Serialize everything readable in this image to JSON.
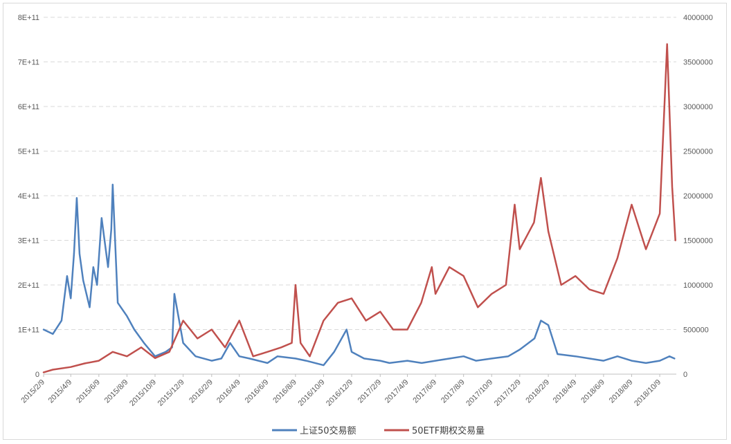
{
  "chart_data": {
    "type": "line",
    "title": "",
    "xlabel": "",
    "ylabel": "",
    "grid": true,
    "legend_position": "bottom",
    "x_tick_labels": [
      "2015/2/9",
      "2015/4/9",
      "2015/6/9",
      "2015/8/9",
      "2015/10/9",
      "2015/12/9",
      "2016/2/9",
      "2016/4/9",
      "2016/6/9",
      "2016/8/9",
      "2016/10/9",
      "2016/12/9",
      "2017/2/9",
      "2017/4/9",
      "2017/6/9",
      "2017/8/9",
      "2017/10/9",
      "2017/12/9",
      "2018/2/9",
      "2018/4/9",
      "2018/6/9",
      "2018/8/9",
      "2018/10/9"
    ],
    "y_left": {
      "range": [
        0,
        800000000000
      ],
      "tick_values": [
        0,
        100000000000,
        200000000000,
        300000000000,
        400000000000,
        500000000000,
        600000000000,
        700000000000,
        800000000000
      ],
      "tick_labels": [
        "0",
        "1E+11",
        "2E+11",
        "3E+11",
        "4E+11",
        "5E+11",
        "6E+11",
        "7E+11",
        "8E+11"
      ]
    },
    "y_right": {
      "range": [
        0,
        4000000
      ],
      "tick_values": [
        0,
        500000,
        1000000,
        1500000,
        2000000,
        2500000,
        3000000,
        3500000,
        4000000
      ],
      "tick_labels": [
        "0",
        "500000",
        "1000000",
        "1500000",
        "2000000",
        "2500000",
        "3000000",
        "3500000",
        "4000000"
      ]
    },
    "series": [
      {
        "name": "上证50交易额",
        "axis": "left",
        "color": "#4f81bd",
        "x": [
          "2015/2/9",
          "2015/3/1",
          "2015/3/20",
          "2015/4/1",
          "2015/4/9",
          "2015/4/16",
          "2015/4/22",
          "2015/4/28",
          "2015/5/6",
          "2015/5/20",
          "2015/5/28",
          "2015/6/5",
          "2015/6/15",
          "2015/6/29",
          "2015/7/6",
          "2015/7/9",
          "2015/7/20",
          "2015/8/9",
          "2015/8/25",
          "2015/9/15",
          "2015/10/9",
          "2015/11/1",
          "2015/11/15",
          "2015/11/20",
          "2015/12/9",
          "2016/1/5",
          "2016/2/9",
          "2016/3/1",
          "2016/3/20",
          "2016/4/9",
          "2016/5/1",
          "2016/6/9",
          "2016/7/1",
          "2016/8/9",
          "2016/9/1",
          "2016/10/9",
          "2016/11/1",
          "2016/11/28",
          "2016/12/9",
          "2017/1/5",
          "2017/2/9",
          "2017/3/1",
          "2017/4/9",
          "2017/5/10",
          "2017/6/9",
          "2017/7/10",
          "2017/8/9",
          "2017/9/5",
          "2017/10/9",
          "2017/11/14",
          "2017/12/9",
          "2018/1/10",
          "2018/1/24",
          "2018/2/9",
          "2018/3/1",
          "2018/4/9",
          "2018/5/9",
          "2018/6/9",
          "2018/7/9",
          "2018/8/9",
          "2018/9/9",
          "2018/10/9",
          "2018/10/30",
          "2018/11/10"
        ],
        "values": [
          100000000000,
          90000000000,
          120000000000,
          220000000000,
          170000000000,
          270000000000,
          395000000000,
          270000000000,
          210000000000,
          150000000000,
          240000000000,
          200000000000,
          350000000000,
          240000000000,
          325000000000,
          425000000000,
          160000000000,
          130000000000,
          100000000000,
          70000000000,
          40000000000,
          50000000000,
          60000000000,
          180000000000,
          70000000000,
          40000000000,
          30000000000,
          35000000000,
          70000000000,
          40000000000,
          35000000000,
          25000000000,
          40000000000,
          35000000000,
          30000000000,
          20000000000,
          50000000000,
          100000000000,
          50000000000,
          35000000000,
          30000000000,
          25000000000,
          30000000000,
          25000000000,
          30000000000,
          35000000000,
          40000000000,
          30000000000,
          35000000000,
          40000000000,
          55000000000,
          80000000000,
          120000000000,
          110000000000,
          45000000000,
          40000000000,
          35000000000,
          30000000000,
          40000000000,
          30000000000,
          25000000000,
          30000000000,
          40000000000,
          35000000000
        ]
      },
      {
        "name": "50ETF期权交易量",
        "axis": "right",
        "color": "#c0504d",
        "x": [
          "2015/2/9",
          "2015/3/1",
          "2015/4/9",
          "2015/5/9",
          "2015/6/9",
          "2015/7/9",
          "2015/8/9",
          "2015/9/9",
          "2015/10/9",
          "2015/11/9",
          "2015/12/9",
          "2016/1/9",
          "2016/2/9",
          "2016/3/9",
          "2016/4/9",
          "2016/5/9",
          "2016/6/9",
          "2016/7/9",
          "2016/8/1",
          "2016/8/9",
          "2016/8/20",
          "2016/9/9",
          "2016/10/9",
          "2016/11/9",
          "2016/12/9",
          "2017/1/9",
          "2017/2/9",
          "2017/3/9",
          "2017/4/9",
          "2017/5/9",
          "2017/6/1",
          "2017/6/9",
          "2017/7/9",
          "2017/8/9",
          "2017/9/9",
          "2017/10/9",
          "2017/11/9",
          "2017/11/28",
          "2017/12/9",
          "2018/1/9",
          "2018/1/24",
          "2018/2/9",
          "2018/3/9",
          "2018/4/9",
          "2018/5/9",
          "2018/6/9",
          "2018/7/9",
          "2018/8/9",
          "2018/9/9",
          "2018/10/9",
          "2018/10/25",
          "2018/11/5",
          "2018/11/12"
        ],
        "values": [
          20000,
          50000,
          80000,
          120000,
          150000,
          250000,
          200000,
          300000,
          180000,
          250000,
          600000,
          400000,
          500000,
          300000,
          600000,
          200000,
          250000,
          300000,
          350000,
          1000000,
          350000,
          200000,
          600000,
          800000,
          850000,
          600000,
          700000,
          500000,
          500000,
          800000,
          1200000,
          900000,
          1200000,
          1100000,
          750000,
          900000,
          1000000,
          1900000,
          1400000,
          1700000,
          2200000,
          1600000,
          1000000,
          1100000,
          950000,
          900000,
          1300000,
          1900000,
          1400000,
          1800000,
          3700000,
          2100000,
          1500000
        ]
      }
    ]
  }
}
